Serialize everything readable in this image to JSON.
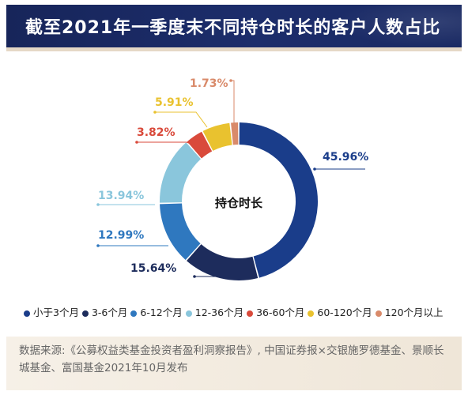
{
  "chart_data": {
    "type": "pie",
    "title": "截至2021年一季度末不同持仓时长的客户人数占比",
    "center_label": "持仓时长",
    "categories": [
      "小于3个月",
      "3-6个月",
      "6-12个月",
      "12-36个月",
      "36-60个月",
      "60-120个月",
      "120个月以上"
    ],
    "values": [
      45.96,
      15.64,
      12.99,
      13.94,
      3.82,
      5.91,
      1.73
    ],
    "value_labels": [
      "45.96%",
      "15.64%",
      "12.99%",
      "13.94%",
      "3.82%",
      "5.91%",
      "1.73%"
    ],
    "colors": [
      "#1a3d8a",
      "#1d2c5c",
      "#2f78bf",
      "#8ac6dc",
      "#d94a3b",
      "#e9c22f",
      "#d98a6a"
    ],
    "legend_position": "bottom"
  },
  "source": "数据来源:《公募权益类基金投资者盈利洞察报告》, 中国证券报×交银施罗德基金、景顺长城基金、富国基金2021年10月发布"
}
